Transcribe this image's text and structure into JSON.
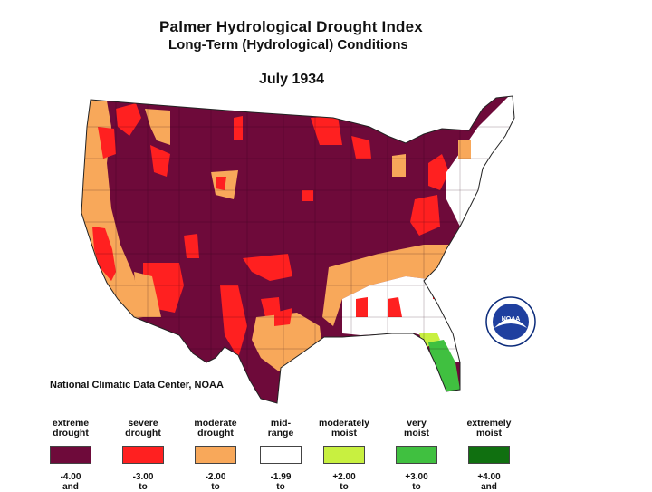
{
  "title": "Palmer Hydrological Drought Index",
  "subtitle": "Long-Term (Hydrological) Conditions",
  "date": "July 1934",
  "credit": "National Climatic Data Center, NOAA",
  "logo_text": "NOAA",
  "colors": {
    "extreme_drought": "#6e0a3a",
    "severe_drought": "#ff2020",
    "moderate_drought": "#f8a85a",
    "mid_range": "#ffffff",
    "moderately_moist": "#c8f040",
    "very_moist": "#40c040",
    "extremely_moist": "#107010"
  },
  "legend": [
    {
      "line1": "extreme",
      "line2": "drought",
      "color": "#6e0a3a",
      "value": "-4.00",
      "sub": "and"
    },
    {
      "line1": "severe",
      "line2": "drought",
      "color": "#ff2020",
      "value": "-3.00",
      "sub": "to"
    },
    {
      "line1": "moderate",
      "line2": "drought",
      "color": "#f8a85a",
      "value": "-2.00",
      "sub": "to"
    },
    {
      "line1": "mid-",
      "line2": "range",
      "color": "#ffffff",
      "value": "-1.99",
      "sub": "to"
    },
    {
      "line1": "moderately",
      "line2": "moist",
      "color": "#c8f040",
      "value": "+2.00",
      "sub": "to"
    },
    {
      "line1": "very",
      "line2": "moist",
      "color": "#40c040",
      "value": "+3.00",
      "sub": "to"
    },
    {
      "line1": "extremely",
      "line2": "moist",
      "color": "#107010",
      "value": "+4.00",
      "sub": "and"
    }
  ]
}
